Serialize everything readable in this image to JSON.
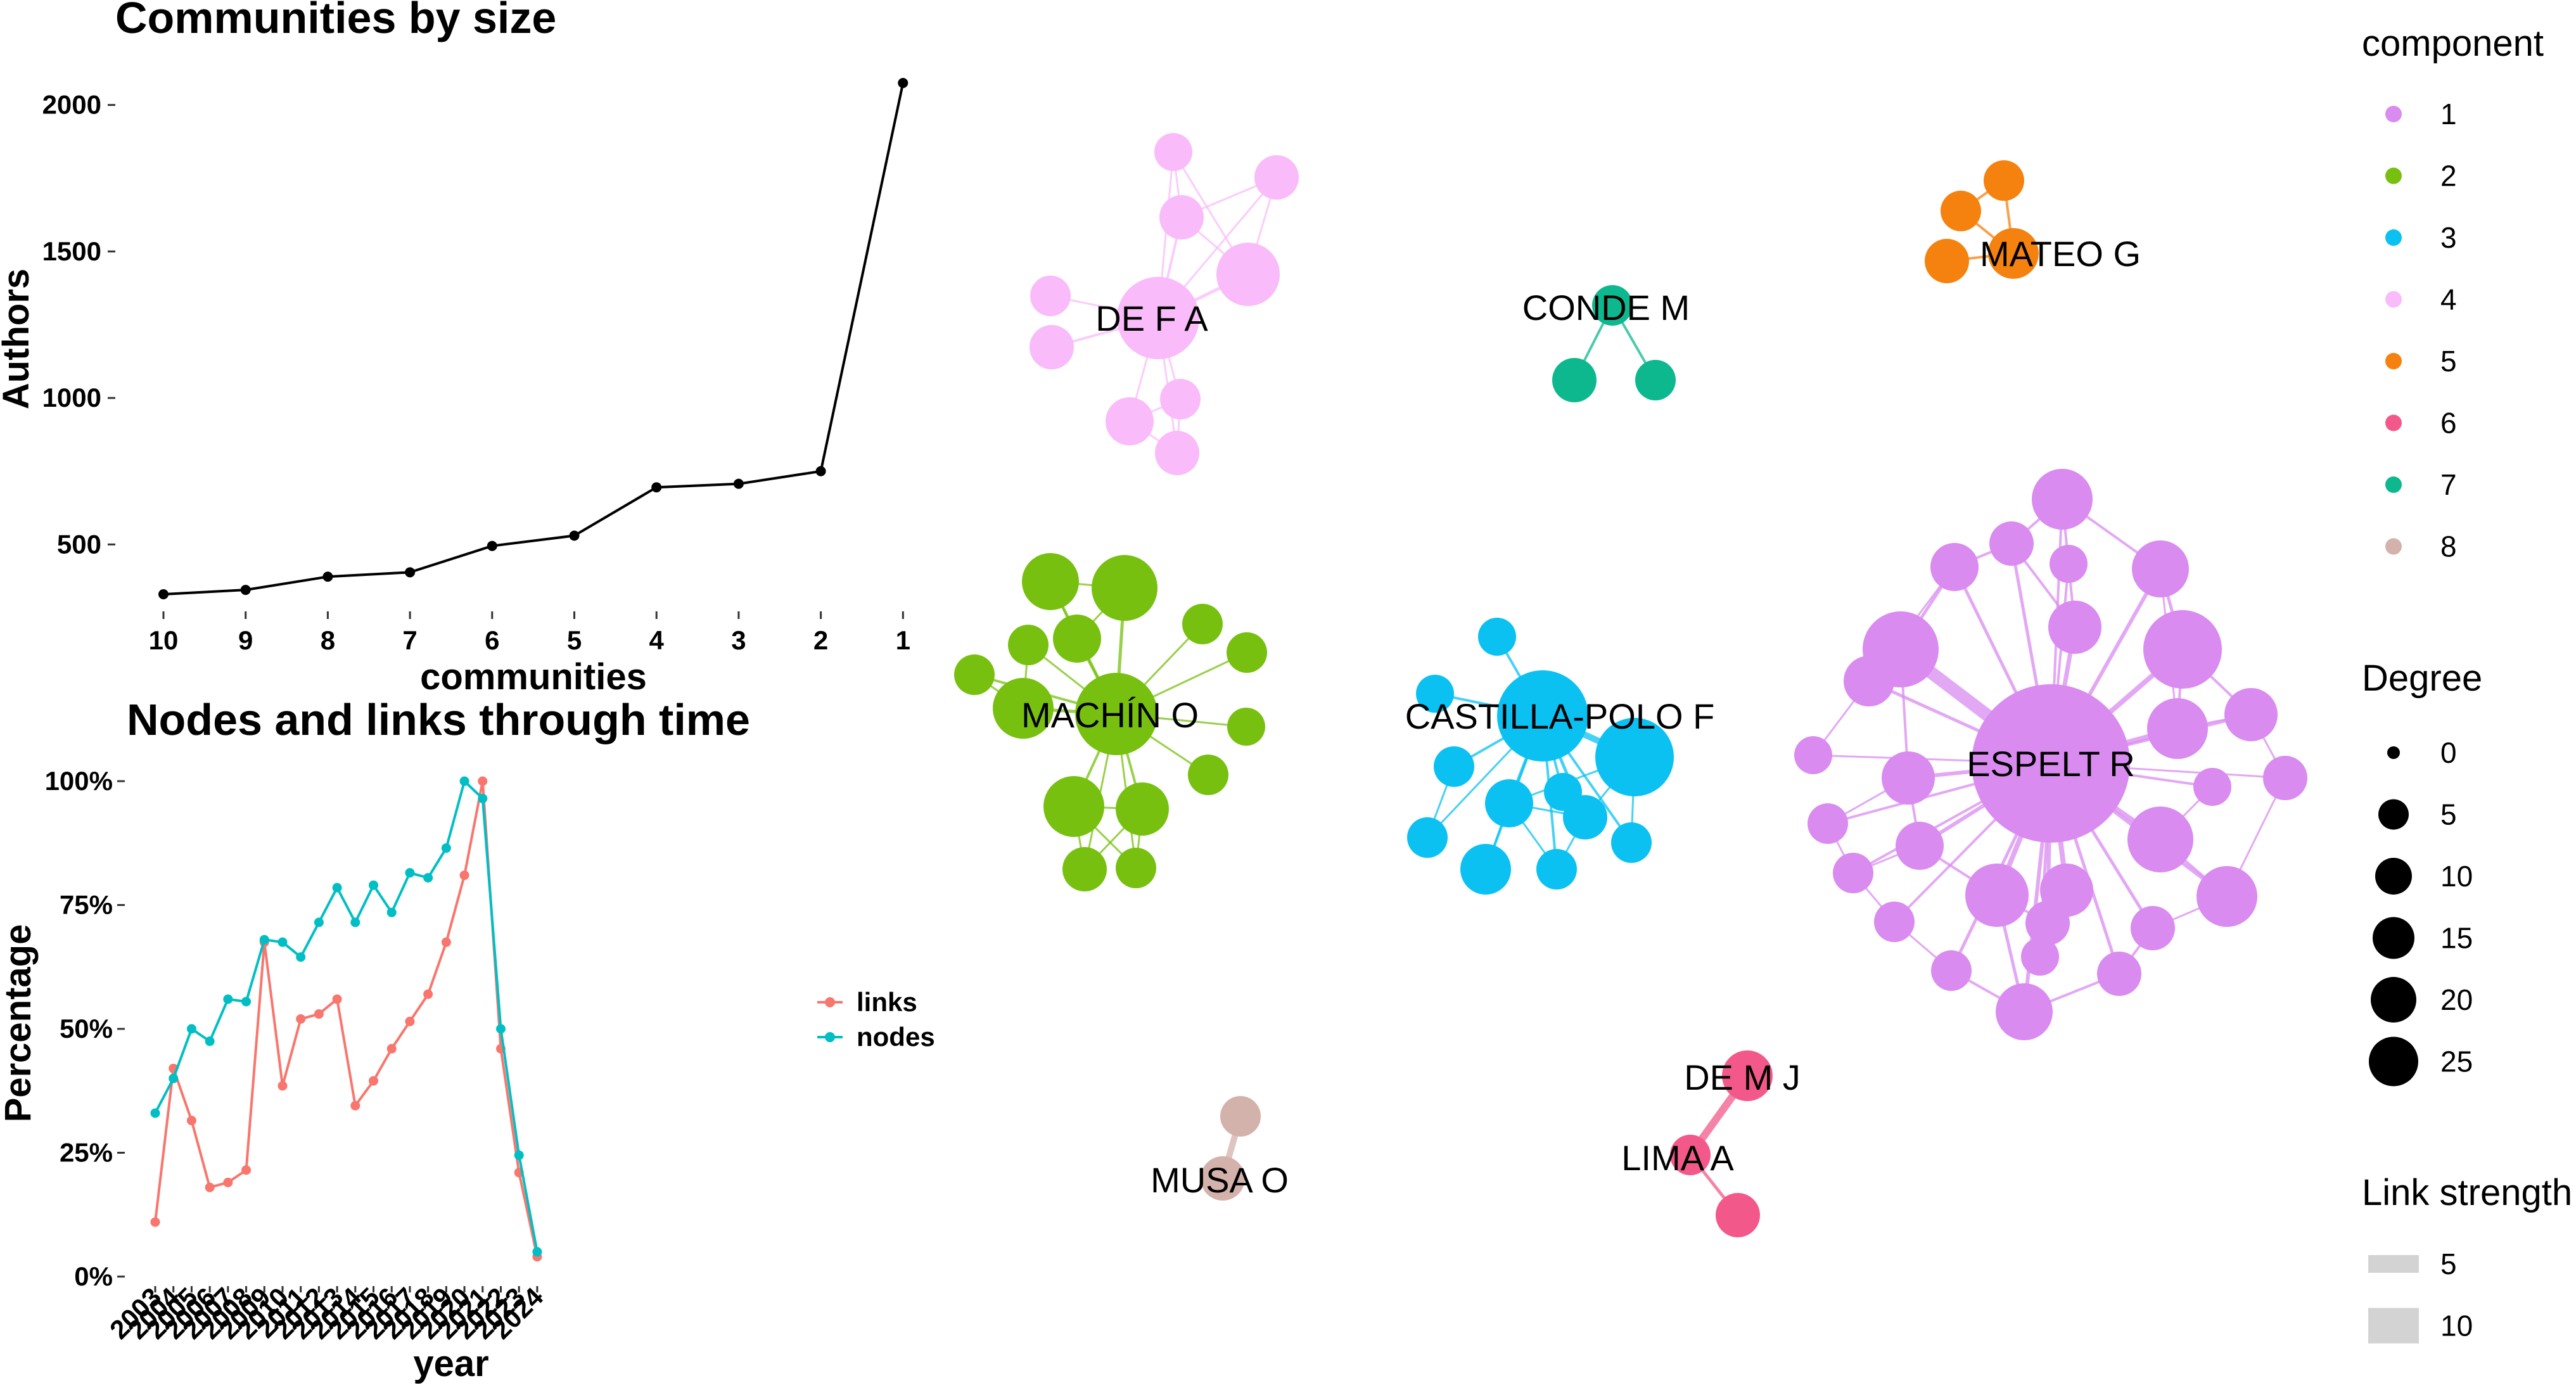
{
  "chart_data": [
    {
      "type": "line",
      "title": "Communities by size",
      "xlabel": "communities",
      "ylabel": "Authors",
      "categories": [
        "10",
        "9",
        "8",
        "7",
        "6",
        "5",
        "4",
        "3",
        "2",
        "1"
      ],
      "values": [
        330,
        345,
        390,
        405,
        495,
        530,
        695,
        707,
        750,
        2075
      ],
      "yticks": [
        500,
        1000,
        1500,
        2000
      ],
      "ylim": [
        280,
        2120
      ],
      "color": "#000000"
    },
    {
      "type": "line",
      "title": "Nodes and links through time",
      "xlabel": "year",
      "ylabel": "Percentage",
      "categories": [
        "2003",
        "2004",
        "2005",
        "2006",
        "2007",
        "2008",
        "2009",
        "2010",
        "2011",
        "2012",
        "2013",
        "2014",
        "2015",
        "2016",
        "2017",
        "2018",
        "2019",
        "2020",
        "2021",
        "2022",
        "2023",
        "2024"
      ],
      "yticks": [
        "0%",
        "25%",
        "50%",
        "75%",
        "100%"
      ],
      "ylim": [
        0,
        100
      ],
      "legend_position": "right",
      "series": [
        {
          "name": "links",
          "color": "#F8766D",
          "values": [
            11,
            42,
            31.5,
            18,
            19,
            21.5,
            67.5,
            38.5,
            52,
            53,
            56,
            34.5,
            39.5,
            46,
            51.5,
            57,
            67.5,
            81,
            100,
            46,
            21,
            4
          ]
        },
        {
          "name": "nodes",
          "color": "#00BFC4",
          "values": [
            33,
            40,
            50,
            47.5,
            56,
            55.5,
            68,
            67.5,
            64.5,
            71.5,
            78.5,
            71.5,
            79,
            73.5,
            81.5,
            80.5,
            86.5,
            100,
            96.5,
            50,
            24.5,
            5
          ]
        }
      ]
    },
    {
      "type": "network",
      "legend": {
        "component_title": "component",
        "components": [
          {
            "label": "1",
            "color": "#D98BF0"
          },
          {
            "label": "2",
            "color": "#77C00F"
          },
          {
            "label": "3",
            "color": "#0AC1F2"
          },
          {
            "label": "4",
            "color": "#F9BBF9"
          },
          {
            "label": "5",
            "color": "#F5820F"
          },
          {
            "label": "6",
            "color": "#F2598A"
          },
          {
            "label": "7",
            "color": "#0DB88F"
          },
          {
            "label": "8",
            "color": "#D4B2AC"
          }
        ],
        "degree_title": "Degree",
        "degrees": [
          "0",
          "5",
          "10",
          "15",
          "20",
          "25"
        ],
        "link_title": "Link strength",
        "links": [
          "5",
          "10"
        ]
      },
      "labels": {
        "espelt": "ESPELT R",
        "machin": "MACHÍN O",
        "castilla": "CASTILLA-POLO F",
        "def": "DE F A",
        "conde": "CONDE M",
        "mateo": "MATEO G",
        "demj": "DE M J",
        "lima": "LIMA A",
        "musa": "MUSA O"
      }
    }
  ]
}
